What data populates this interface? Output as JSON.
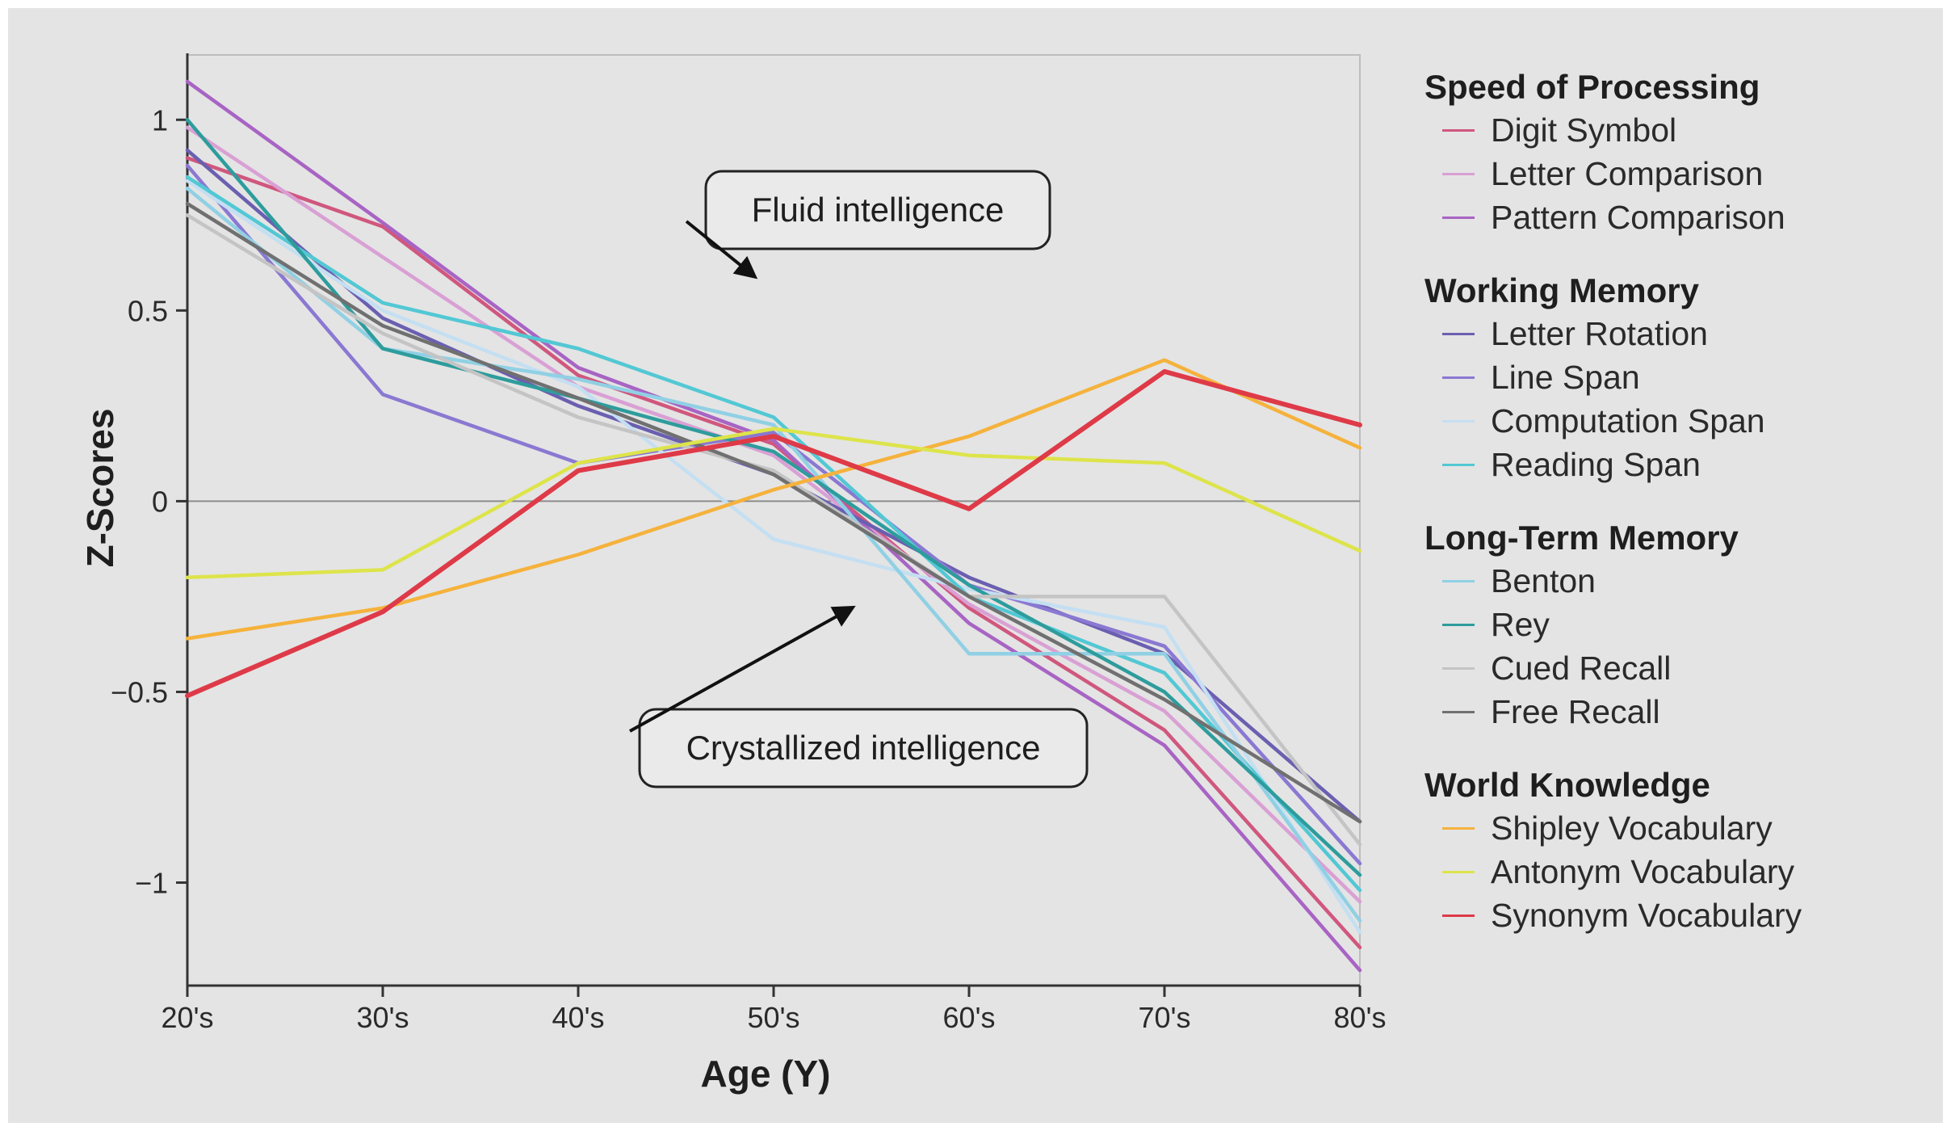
{
  "chart_data": {
    "type": "line",
    "xlabel": "Age (Y)",
    "ylabel": "Z-Scores",
    "categories": [
      "20's",
      "30's",
      "40's",
      "50's",
      "60's",
      "70's",
      "80's"
    ],
    "ylim": [
      -1.27,
      1.17
    ],
    "yticks": [
      1,
      0.5,
      0,
      -0.5,
      -1
    ],
    "ytick_labels": [
      "1",
      "0.5",
      "0",
      "−0.5",
      "−1"
    ],
    "reference_line": 0,
    "series": [
      {
        "name": "Digit Symbol",
        "group": "Speed of Processing",
        "color": "#d0577e",
        "values": [
          0.9,
          0.72,
          0.33,
          0.15,
          -0.28,
          -0.6,
          -1.17
        ]
      },
      {
        "name": "Letter Comparison",
        "group": "Speed of Processing",
        "color": "#d9a0d4",
        "values": [
          0.98,
          0.64,
          0.3,
          0.12,
          -0.27,
          -0.55,
          -1.05
        ]
      },
      {
        "name": "Pattern Comparison",
        "group": "Speed of Processing",
        "color": "#a864c4",
        "values": [
          1.1,
          0.73,
          0.35,
          0.16,
          -0.32,
          -0.64,
          -1.23
        ]
      },
      {
        "name": "Letter Rotation",
        "group": "Working Memory",
        "color": "#6a5fb0",
        "values": [
          0.92,
          0.48,
          0.25,
          0.07,
          -0.2,
          -0.4,
          -0.84
        ]
      },
      {
        "name": "Line Span",
        "group": "Working Memory",
        "color": "#8a78d2",
        "values": [
          0.88,
          0.28,
          0.1,
          0.18,
          -0.22,
          -0.38,
          -0.95
        ]
      },
      {
        "name": "Computation Span",
        "group": "Working Memory",
        "color": "#c4dff2",
        "values": [
          0.84,
          0.5,
          0.3,
          -0.1,
          -0.23,
          -0.33,
          -1.13
        ]
      },
      {
        "name": "Reading Span",
        "group": "Working Memory",
        "color": "#52c8d4",
        "values": [
          0.85,
          0.52,
          0.4,
          0.22,
          -0.25,
          -0.45,
          -1.02
        ]
      },
      {
        "name": "Benton",
        "group": "Long-Term Memory",
        "color": "#90d0e4",
        "values": [
          0.82,
          0.4,
          0.32,
          0.2,
          -0.4,
          -0.4,
          -1.1
        ]
      },
      {
        "name": "Rey",
        "group": "Long-Term Memory",
        "color": "#2e9c9c",
        "values": [
          1.0,
          0.4,
          0.27,
          0.13,
          -0.22,
          -0.5,
          -0.98
        ]
      },
      {
        "name": "Cued Recall",
        "group": "Long-Term Memory",
        "color": "#c4c4c4",
        "values": [
          0.75,
          0.44,
          0.22,
          0.08,
          -0.25,
          -0.25,
          -0.9
        ]
      },
      {
        "name": "Free Recall",
        "group": "Long-Term Memory",
        "color": "#707070",
        "values": [
          0.78,
          0.46,
          0.27,
          0.07,
          -0.25,
          -0.52,
          -0.84
        ]
      },
      {
        "name": "Shipley Vocabulary",
        "group": "World Knowledge",
        "color": "#f5b23c",
        "values": [
          -0.36,
          -0.28,
          -0.14,
          0.03,
          0.17,
          0.37,
          0.14
        ]
      },
      {
        "name": "Antonym Vocabulary",
        "group": "World Knowledge",
        "color": "#dde44a",
        "values": [
          -0.2,
          -0.18,
          0.1,
          0.19,
          0.12,
          0.1,
          -0.13
        ]
      },
      {
        "name": "Synonym Vocabulary",
        "group": "World Knowledge",
        "color": "#de3a48",
        "values": [
          -0.51,
          -0.29,
          0.08,
          0.17,
          -0.02,
          0.34,
          0.2
        ]
      }
    ],
    "annotations": [
      {
        "text": "Fluid intelligence",
        "arrow_to": {
          "x": 2.9,
          "y": 0.59
        }
      },
      {
        "text": "Crystallized intelligence",
        "arrow_to": {
          "x": 3.4,
          "y": -0.28
        }
      }
    ],
    "legend": {
      "placement": "right",
      "groups": [
        {
          "title": "Speed of Processing",
          "items": [
            "Digit Symbol",
            "Letter Comparison",
            "Pattern Comparison"
          ]
        },
        {
          "title": "Working Memory",
          "items": [
            "Letter Rotation",
            "Line Span",
            "Computation Span",
            "Reading Span"
          ]
        },
        {
          "title": "Long-Term Memory",
          "items": [
            "Benton",
            "Rey",
            "Cued Recall",
            "Free Recall"
          ]
        },
        {
          "title": "World Knowledge",
          "items": [
            "Shipley Vocabulary",
            "Antonym Vocabulary",
            "Synonym Vocabulary"
          ]
        }
      ]
    }
  }
}
